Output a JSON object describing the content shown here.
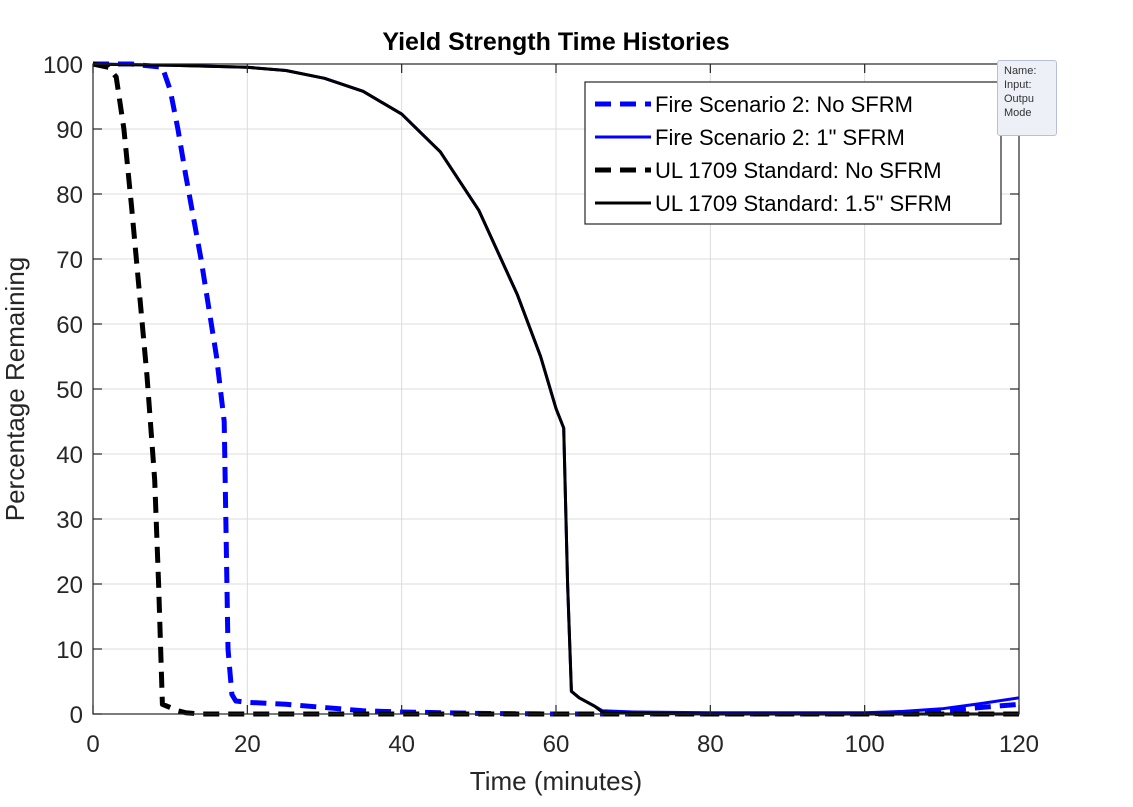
{
  "colors": {
    "blue": "#0000ff",
    "black": "#000000",
    "grid": "#dcdcdc",
    "axis": "#262626"
  },
  "tooltip": {
    "lines": [
      "Name:",
      "Input:",
      "Outpu",
      "Mode"
    ]
  },
  "chart_data": {
    "type": "line",
    "title": "Yield Strength Time Histories",
    "xlabel": "Time (minutes)",
    "ylabel": "Percentage Remaining",
    "xlim": [
      0,
      120
    ],
    "ylim": [
      0,
      100
    ],
    "xticks": [
      0,
      20,
      40,
      60,
      80,
      100,
      120
    ],
    "yticks": [
      0,
      10,
      20,
      30,
      40,
      50,
      60,
      70,
      80,
      90,
      100
    ],
    "grid": true,
    "legend_position": "top-right",
    "series": [
      {
        "name": "Fire Scenario 2: No SFRM",
        "color": "#0000ff",
        "style": "dashed",
        "x": [
          0,
          5,
          9,
          10,
          11,
          12,
          14,
          16,
          17,
          17.5,
          18,
          18.5,
          20,
          25,
          30,
          35,
          40,
          50,
          60,
          70,
          80,
          90,
          100,
          105,
          110,
          115,
          120
        ],
        "y": [
          100,
          100,
          99.5,
          96,
          90,
          83,
          70,
          55,
          45,
          10,
          3,
          2,
          1.8,
          1.5,
          1.0,
          0.5,
          0.3,
          0.1,
          0,
          0,
          0,
          0,
          0,
          0.2,
          0.5,
          1.0,
          1.5
        ]
      },
      {
        "name": "Fire Scenario 2: 1\" SFRM",
        "color": "#0000ff",
        "style": "solid",
        "x": [
          0,
          10,
          20,
          25,
          30,
          35,
          40,
          45,
          50,
          55,
          58,
          60,
          61,
          61.5,
          62,
          63,
          65,
          66,
          70,
          80,
          90,
          100,
          105,
          110,
          115,
          120
        ],
        "y": [
          100,
          99.8,
          99.5,
          99,
          97.8,
          95.8,
          92.3,
          86.5,
          77.5,
          64.5,
          55,
          47,
          44,
          20,
          3.5,
          2.5,
          1.2,
          0.5,
          0.3,
          0.2,
          0.2,
          0.2,
          0.4,
          0.8,
          1.6,
          2.5
        ]
      },
      {
        "name": "UL 1709 Standard: No SFRM",
        "color": "#000000",
        "style": "dashed",
        "x": [
          0,
          2,
          3,
          4,
          5,
          6,
          7,
          8,
          8.5,
          9,
          10,
          11,
          12,
          14,
          20,
          40,
          60,
          80,
          100,
          120
        ],
        "y": [
          100,
          99.5,
          98,
          90,
          78,
          65,
          52,
          36,
          20,
          1.5,
          1,
          0.5,
          0.2,
          0,
          0,
          0,
          0,
          0,
          0,
          0
        ]
      },
      {
        "name": "UL 1709 Standard: 1.5\" SFRM",
        "color": "#000000",
        "style": "solid",
        "x": [
          0,
          10,
          20,
          25,
          30,
          35,
          40,
          45,
          50,
          55,
          58,
          60,
          61,
          61.5,
          62,
          63,
          65,
          66,
          70,
          80,
          90,
          100,
          110,
          120
        ],
        "y": [
          100,
          99.8,
          99.5,
          99,
          97.8,
          95.8,
          92.3,
          86.5,
          77.5,
          64.5,
          55,
          47,
          44,
          20,
          3.5,
          2.5,
          1.2,
          0.3,
          0.1,
          0,
          0,
          0,
          0,
          0
        ]
      }
    ]
  }
}
